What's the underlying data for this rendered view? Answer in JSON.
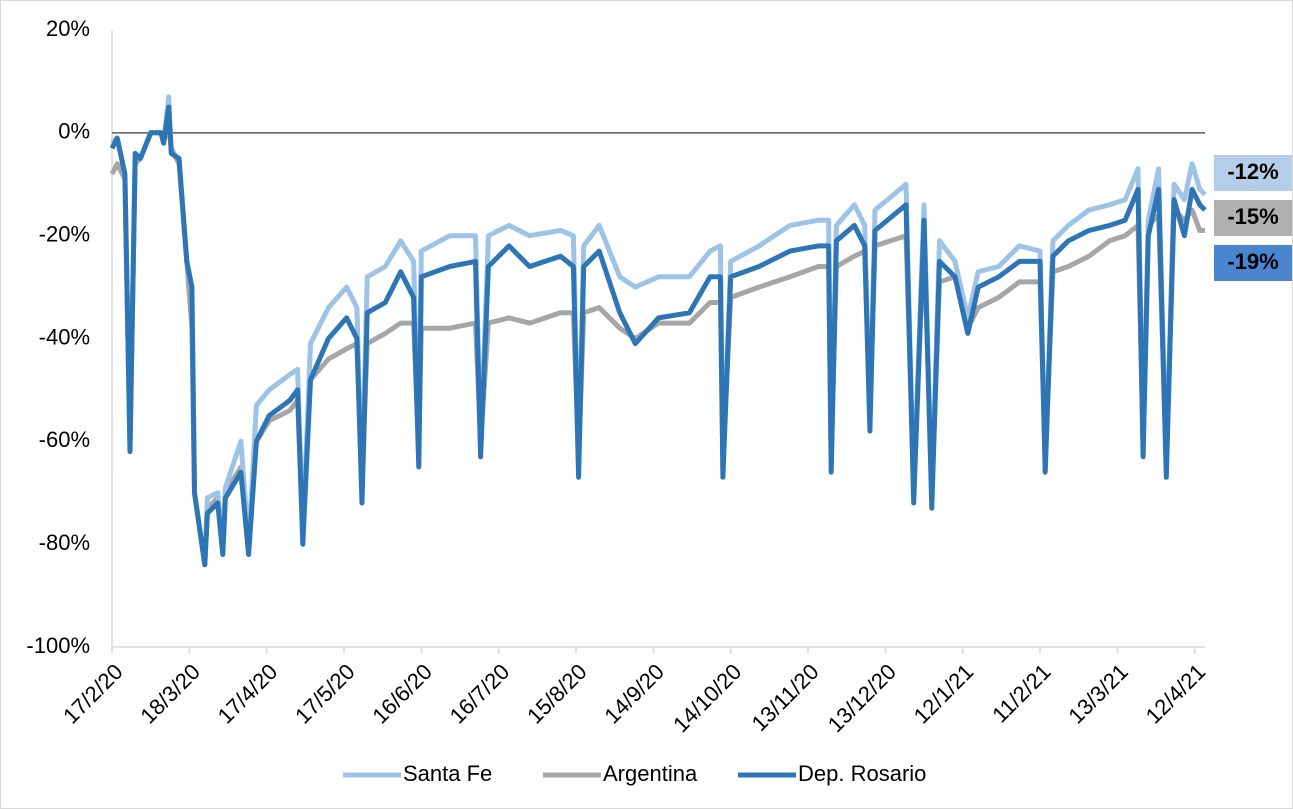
{
  "chart_data": {
    "type": "line",
    "x": [
      0,
      2,
      5,
      7,
      9,
      11,
      15,
      19,
      20,
      22,
      23,
      26,
      29,
      31,
      32,
      36,
      37,
      41,
      43,
      44,
      50,
      53,
      56,
      61,
      69,
      72,
      74,
      77,
      84,
      91,
      95,
      97,
      99,
      106,
      112,
      117,
      119,
      120,
      131,
      141,
      143,
      146,
      154,
      162,
      174,
      179,
      181,
      183,
      189,
      197,
      203,
      212,
      224,
      232,
      236,
      237,
      240,
      251,
      263,
      274,
      278,
      279,
      281,
      288,
      292,
      294,
      296,
      308,
      311,
      315,
      318,
      321,
      327,
      332,
      336,
      344,
      352,
      360,
      362,
      365,
      371,
      379,
      387,
      393,
      398,
      400,
      402,
      406,
      409,
      412,
      416,
      419,
      422,
      424
    ],
    "series": [
      {
        "name": "Santa Fe",
        "color": "#9dc3e6",
        "end_label": "-12%",
        "values": [
          -2,
          -1,
          -8,
          -62,
          -4,
          -5,
          0,
          0,
          -2,
          7,
          -4,
          -5,
          -25,
          -30,
          -70,
          -84,
          -71,
          -70,
          -80,
          -69,
          -60,
          -80,
          -53,
          -50,
          -47,
          -46,
          -78,
          -41,
          -34,
          -30,
          -34,
          -70,
          -28,
          -26,
          -21,
          -25,
          -63,
          -23,
          -20,
          -20,
          -61,
          -20,
          -18,
          -20,
          -19,
          -20,
          -65,
          -22,
          -18,
          -28,
          -30,
          -28,
          -28,
          -23,
          -22,
          -65,
          -25,
          -22,
          -18,
          -17,
          -17,
          -64,
          -18,
          -14,
          -18,
          -56,
          -15,
          -10,
          -70,
          -14,
          -71,
          -21,
          -25,
          -36,
          -27,
          -26,
          -22,
          -23,
          -64,
          -21,
          -18,
          -15,
          -14,
          -13,
          -7,
          -61,
          -17,
          -7,
          -65,
          -10,
          -13,
          -6,
          -11,
          -12
        ]
      },
      {
        "name": "Argentina",
        "color": "#a6a6a6",
        "end_label": "-19%",
        "values": [
          -8,
          -6,
          -9,
          -60,
          -6,
          -5,
          0,
          0,
          -2,
          2,
          -3,
          -6,
          -25,
          -38,
          -70,
          -84,
          -73,
          -71,
          -78,
          -70,
          -65,
          -78,
          -60,
          -56,
          -54,
          -52,
          -77,
          -48,
          -44,
          -42,
          -41,
          -68,
          -41,
          -39,
          -37,
          -37,
          -62,
          -38,
          -38,
          -37,
          -60,
          -37,
          -36,
          -37,
          -35,
          -35,
          -63,
          -35,
          -34,
          -38,
          -40,
          -37,
          -37,
          -33,
          -33,
          -64,
          -32,
          -30,
          -28,
          -26,
          -26,
          -63,
          -26,
          -24,
          -23,
          -55,
          -22,
          -20,
          -69,
          -20,
          -70,
          -29,
          -28,
          -38,
          -34,
          -32,
          -29,
          -29,
          -63,
          -27,
          -26,
          -24,
          -21,
          -20,
          -18,
          -60,
          -18,
          -16,
          -64,
          -15,
          -17,
          -15,
          -19,
          -19
        ]
      },
      {
        "name": "Dep. Rosario",
        "color": "#2e75b6",
        "end_label": "-15%",
        "values": [
          -3,
          -1,
          -8,
          -62,
          -4,
          -5,
          0,
          0,
          -2,
          5,
          -4,
          -5,
          -25,
          -30,
          -70,
          -84,
          -74,
          -72,
          -82,
          -71,
          -66,
          -82,
          -60,
          -55,
          -52,
          -50,
          -80,
          -48,
          -40,
          -36,
          -40,
          -72,
          -35,
          -33,
          -27,
          -32,
          -65,
          -28,
          -26,
          -25,
          -63,
          -26,
          -22,
          -26,
          -24,
          -26,
          -67,
          -26,
          -23,
          -35,
          -41,
          -36,
          -35,
          -28,
          -28,
          -67,
          -28,
          -26,
          -23,
          -22,
          -22,
          -66,
          -21,
          -18,
          -22,
          -58,
          -19,
          -14,
          -72,
          -17,
          -73,
          -25,
          -28,
          -39,
          -30,
          -28,
          -25,
          -25,
          -66,
          -24,
          -21,
          -19,
          -18,
          -17,
          -11,
          -63,
          -20,
          -11,
          -67,
          -13,
          -20,
          -11,
          -14,
          -15
        ]
      }
    ],
    "end_label_colors": [
      "#b4cde9",
      "#b0b0b0",
      "#4a86d0"
    ],
    "xlim": [
      0,
      424
    ],
    "xticks": [
      {
        "value": 0,
        "label": "17/2/20"
      },
      {
        "value": 30,
        "label": "18/3/20"
      },
      {
        "value": 60,
        "label": "17/4/20"
      },
      {
        "value": 90,
        "label": "17/5/20"
      },
      {
        "value": 120,
        "label": "16/6/20"
      },
      {
        "value": 150,
        "label": "16/7/20"
      },
      {
        "value": 180,
        "label": "15/8/20"
      },
      {
        "value": 210,
        "label": "14/9/20"
      },
      {
        "value": 240,
        "label": "14/10/20"
      },
      {
        "value": 270,
        "label": "13/11/20"
      },
      {
        "value": 300,
        "label": "13/12/20"
      },
      {
        "value": 330,
        "label": "12/1/21"
      },
      {
        "value": 360,
        "label": "11/2/21"
      },
      {
        "value": 390,
        "label": "13/3/21"
      },
      {
        "value": 420,
        "label": "12/4/21"
      }
    ],
    "ylim": [
      -100,
      20
    ],
    "yticks": [
      {
        "value": -100,
        "label": "-100%"
      },
      {
        "value": -80,
        "label": "-80%"
      },
      {
        "value": -60,
        "label": "-60%"
      },
      {
        "value": -40,
        "label": "-40%"
      },
      {
        "value": -20,
        "label": "-20%"
      },
      {
        "value": 0,
        "label": "0%"
      },
      {
        "value": 20,
        "label": "20%"
      }
    ],
    "legend": "bottom"
  }
}
